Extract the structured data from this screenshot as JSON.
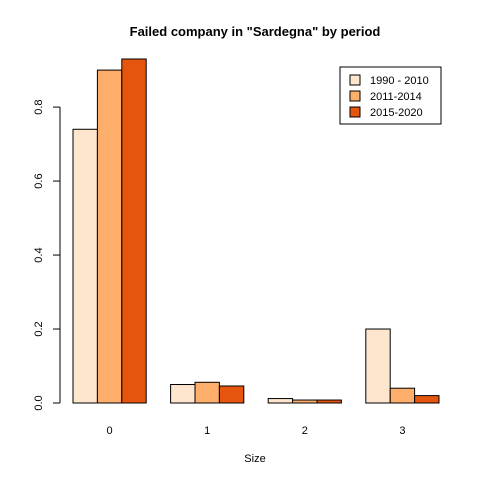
{
  "chart_data": {
    "type": "bar",
    "title": "Failed company in \"Sardegna\" by period",
    "xlabel": "Size",
    "ylabel": "",
    "categories": [
      "0",
      "1",
      "2",
      "3"
    ],
    "series": [
      {
        "name": "1990 - 2010",
        "color": "#FEE6CE",
        "values": [
          0.74,
          0.05,
          0.012,
          0.2
        ]
      },
      {
        "name": "2011-2014",
        "color": "#FDAE6B",
        "values": [
          0.9,
          0.056,
          0.008,
          0.04
        ]
      },
      {
        "name": "2015-2020",
        "color": "#E6550D",
        "values": [
          0.93,
          0.046,
          0.008,
          0.02
        ]
      }
    ],
    "ylim": [
      0,
      0.93
    ],
    "yticks": [
      "0.0",
      "0.2",
      "0.4",
      "0.6",
      "0.8"
    ],
    "grid": false,
    "legend_position": "top-right"
  }
}
